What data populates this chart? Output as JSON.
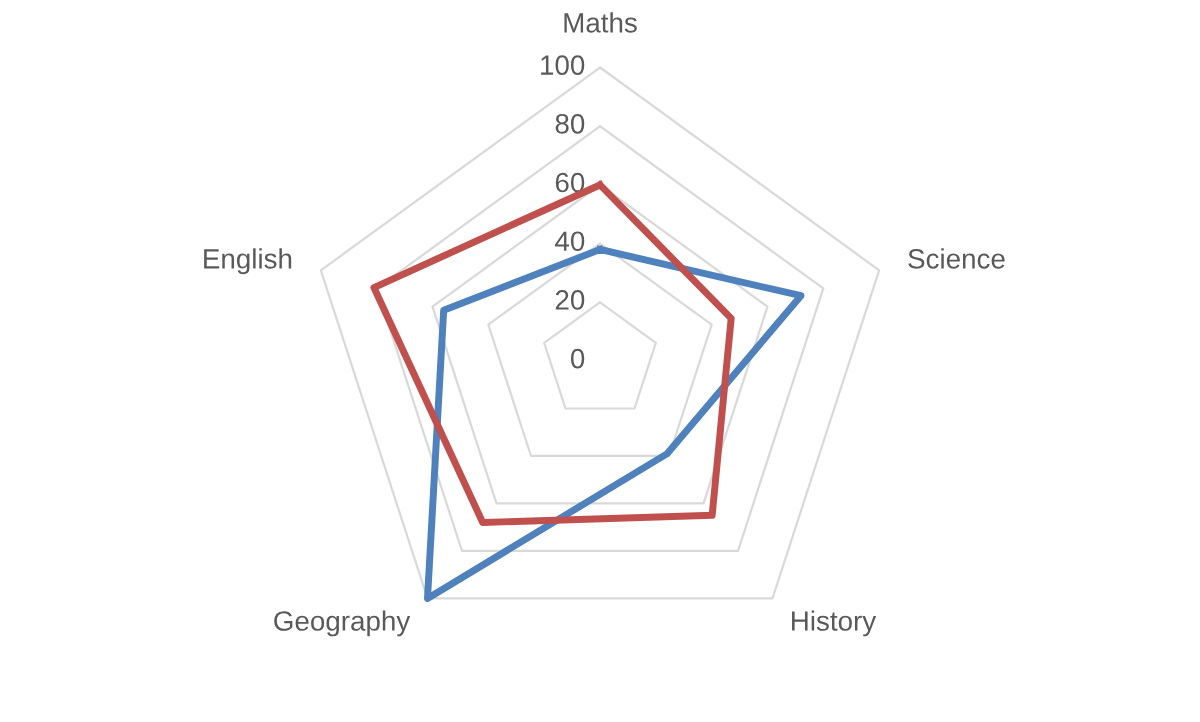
{
  "chart_data": {
    "type": "radar",
    "categories": [
      "Maths",
      "Science",
      "History",
      "Geography",
      "English"
    ],
    "series": [
      {
        "color": "#4f81bd",
        "values": [
          38,
          72,
          39,
          100,
          56
        ]
      },
      {
        "color": "#c0504d",
        "values": [
          60,
          47,
          65,
          68,
          81
        ]
      }
    ],
    "ylim": [
      0,
      100
    ],
    "yticks": [
      0,
      20,
      40,
      60,
      80,
      100
    ],
    "grid": true,
    "legend": false,
    "marker": "none",
    "line_style": "solid"
  }
}
